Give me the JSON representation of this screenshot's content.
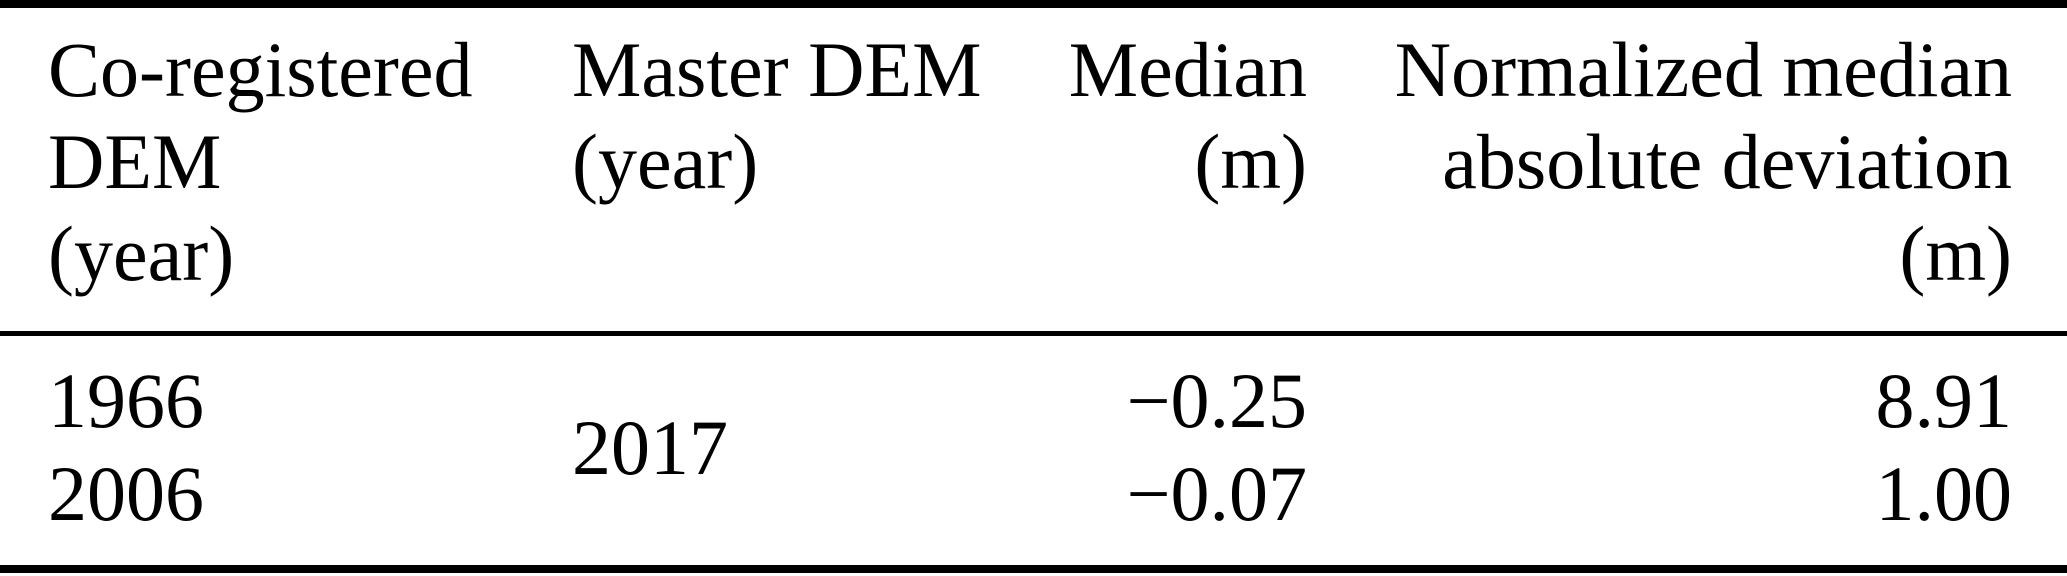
{
  "table": {
    "headers": [
      "Co-registered\nDEM\n(year)",
      "Master DEM\n(year)",
      "Median\n(m)",
      "Normalized median\nabsolute deviation\n(m)"
    ],
    "master_dem_year": "2017",
    "rows": [
      {
        "co_registered_dem_year": "1966",
        "median_m": "−0.25",
        "nmad_m": "8.91"
      },
      {
        "co_registered_dem_year": "2006",
        "median_m": "−0.07",
        "nmad_m": "1.00"
      }
    ],
    "colors": {
      "text": "#000000",
      "background": "#ffffff",
      "rule": "#000000"
    }
  },
  "chart_data": {
    "type": "table",
    "columns": [
      "Co-registered DEM (year)",
      "Master DEM (year)",
      "Median (m)",
      "Normalized median absolute deviation (m)"
    ],
    "rows": [
      [
        "1966",
        "2017",
        "-0.25",
        "8.91"
      ],
      [
        "2006",
        "2017",
        "-0.07",
        "1.00"
      ]
    ]
  }
}
